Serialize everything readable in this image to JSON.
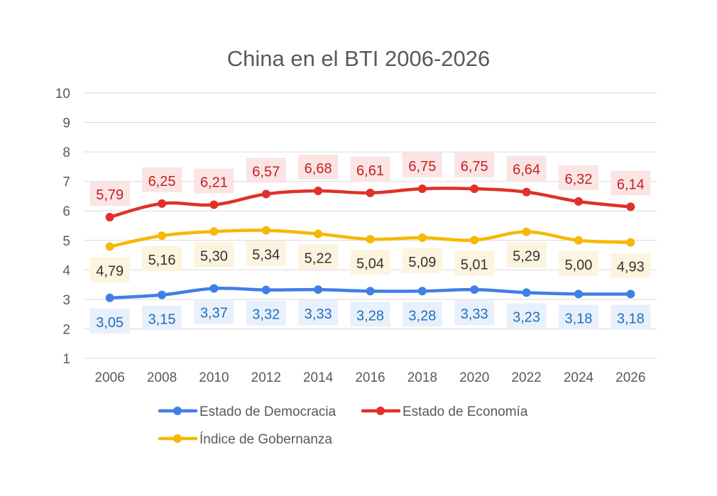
{
  "chart_data": {
    "type": "line",
    "title": "China en el BTI 2006-2026",
    "xlabel": "",
    "ylabel": "",
    "categories": [
      "2006",
      "2008",
      "2010",
      "2012",
      "2014",
      "2016",
      "2018",
      "2020",
      "2022",
      "2024",
      "2026"
    ],
    "y_ticks": [
      "1",
      "2",
      "3",
      "4",
      "5",
      "6",
      "7",
      "8",
      "9",
      "10"
    ],
    "ylim": [
      1,
      10
    ],
    "grid": true,
    "legend_position": "bottom",
    "series": [
      {
        "name": "Estado de Democracia",
        "color": "#3F7FE6",
        "label_color": "#1F6FC0",
        "label_bg": "#E8F0FB",
        "label_position": "below",
        "values": [
          3.05,
          3.15,
          3.37,
          3.32,
          3.33,
          3.28,
          3.28,
          3.33,
          3.23,
          3.18,
          3.18
        ],
        "labels": [
          "3,05",
          "3,15",
          "3,37",
          "3,32",
          "3,33",
          "3,28",
          "3,28",
          "3,33",
          "3,23",
          "3,18",
          "3,18"
        ]
      },
      {
        "name": "Estado de Economía",
        "color": "#E0302A",
        "label_color": "#C0221E",
        "label_bg": "#FBE4E4",
        "label_position": "above",
        "values": [
          5.79,
          6.25,
          6.21,
          6.57,
          6.68,
          6.61,
          6.75,
          6.75,
          6.64,
          6.32,
          6.14
        ],
        "labels": [
          "5,79",
          "6,25",
          "6,21",
          "6,57",
          "6,68",
          "6,61",
          "6,75",
          "6,75",
          "6,64",
          "6,32",
          "6,14"
        ]
      },
      {
        "name": "Índice de Gobernanza",
        "color": "#F6B800",
        "label_color": "#333333",
        "label_bg": "#FDF4DF",
        "label_position": "below",
        "values": [
          4.79,
          5.16,
          5.3,
          5.34,
          5.22,
          5.04,
          5.09,
          5.01,
          5.29,
          5.0,
          4.93
        ],
        "labels": [
          "4,79",
          "5,16",
          "5,30",
          "5,34",
          "5,22",
          "5,04",
          "5,09",
          "5,01",
          "5,29",
          "5,00",
          "4,93"
        ]
      }
    ]
  }
}
